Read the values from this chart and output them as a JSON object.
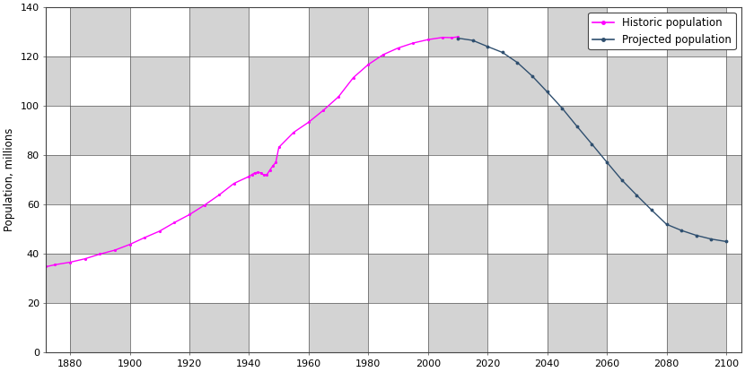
{
  "title": "",
  "ylabel": "Population, millions",
  "xlabel": "",
  "xlim": [
    1872,
    2105
  ],
  "ylim": [
    0,
    140
  ],
  "yticks": [
    0,
    20,
    40,
    60,
    80,
    100,
    120,
    140
  ],
  "xticks": [
    1880,
    1900,
    1920,
    1940,
    1960,
    1980,
    2000,
    2020,
    2040,
    2060,
    2080,
    2100
  ],
  "historic_color": "#ff00ff",
  "projected_color": "#2f4f6f",
  "legend_labels": [
    "Historic population",
    "Projected population"
  ],
  "background_tile_white": "#ffffff",
  "background_tile_gray": "#d3d3d3",
  "historic_data": [
    [
      1872,
      34.8
    ],
    [
      1875,
      35.6
    ],
    [
      1880,
      36.6
    ],
    [
      1885,
      38.0
    ],
    [
      1890,
      39.9
    ],
    [
      1895,
      41.5
    ],
    [
      1900,
      43.8
    ],
    [
      1905,
      46.6
    ],
    [
      1910,
      49.2
    ],
    [
      1915,
      52.7
    ],
    [
      1920,
      55.9
    ],
    [
      1925,
      59.7
    ],
    [
      1930,
      63.9
    ],
    [
      1935,
      68.6
    ],
    [
      1940,
      71.4
    ],
    [
      1941,
      72.2
    ],
    [
      1942,
      72.9
    ],
    [
      1943,
      73.0
    ],
    [
      1944,
      72.9
    ],
    [
      1945,
      71.9
    ],
    [
      1946,
      72.1
    ],
    [
      1947,
      74.0
    ],
    [
      1948,
      75.7
    ],
    [
      1949,
      77.1
    ],
    [
      1950,
      83.2
    ],
    [
      1955,
      89.3
    ],
    [
      1960,
      93.4
    ],
    [
      1965,
      98.3
    ],
    [
      1970,
      103.7
    ],
    [
      1975,
      111.5
    ],
    [
      1980,
      116.8
    ],
    [
      1985,
      120.8
    ],
    [
      1990,
      123.5
    ],
    [
      1995,
      125.5
    ],
    [
      2000,
      126.9
    ],
    [
      2005,
      127.8
    ],
    [
      2008,
      127.7
    ],
    [
      2010,
      128.0
    ]
  ],
  "projected_data": [
    [
      2010,
      127.5
    ],
    [
      2015,
      126.6
    ],
    [
      2020,
      124.1
    ],
    [
      2025,
      121.7
    ],
    [
      2030,
      117.6
    ],
    [
      2035,
      112.1
    ],
    [
      2040,
      105.7
    ],
    [
      2045,
      99.1
    ],
    [
      2050,
      91.7
    ],
    [
      2055,
      84.5
    ],
    [
      2060,
      77.2
    ],
    [
      2065,
      70.0
    ],
    [
      2070,
      63.8
    ],
    [
      2075,
      57.8
    ],
    [
      2080,
      52.0
    ],
    [
      2085,
      49.5
    ],
    [
      2090,
      47.5
    ],
    [
      2095,
      46.0
    ],
    [
      2100,
      45.0
    ]
  ]
}
